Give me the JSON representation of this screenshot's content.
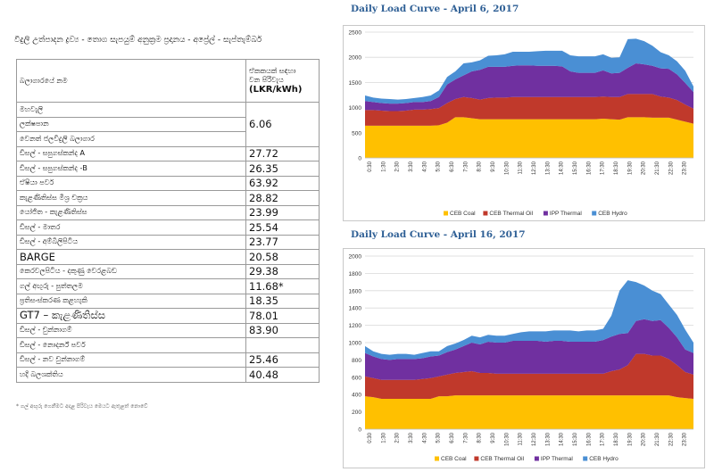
{
  "table": {
    "title": "විදුලි උත්පාදන ද්‍රව්‍ය - තොග සැපයුම් අනුක්‍රම ප්‍රදානය - අප්‍රේල් - සැප්තැම්බර්",
    "header_col1": "බලාගාරයේ නම",
    "header_col2_line1": "ඒකකයක් සඳහා",
    "header_col2_line2": "වන පිරිවැය",
    "header_col2_unit": "(LKR/kWh)",
    "rows": [
      {
        "name": "මහවැලි",
        "value": ""
      },
      {
        "name": "ලක්ෂපාන",
        "value": "6.06"
      },
      {
        "name": "වෙනත් ජලවිදුලි බලාගාර",
        "value": ""
      },
      {
        "name": "ඩීසල් - සපුගස්කන්ද A",
        "value": "27.72"
      },
      {
        "name": "ඩීසල් - සපුගස්කන්ද -B",
        "value": "26.35"
      },
      {
        "name": "ඒෂියා පවර්",
        "value": "63.92"
      },
      {
        "name": "කැළණිතිස්ස මිශ්‍ර චක්‍රය",
        "value": "28.82"
      },
      {
        "name": "යෝජිත - කැළණිතිස්ස",
        "value": "23.99"
      },
      {
        "name": "ඩීසල් - මාතර",
        "value": "25.54"
      },
      {
        "name": "ඩීසල් - අම්බිලිපිටිය",
        "value": "23.77"
      },
      {
        "name": "BARGE",
        "value": "20.58"
      },
      {
        "name": "කෙරවලපිටිය - දකුණු වෙරළබඩ",
        "value": "29.38"
      },
      {
        "name": "ගල් අඟුරු - පුත්තලම",
        "value": "11.68*"
      },
      {
        "name": "ප්‍රතිසංස්කරණ කළහැකි",
        "value": "18.35"
      },
      {
        "name": "GT7 –  කැළණිතිස්ස",
        "value": "78.01"
      },
      {
        "name": "ඩීසල් - චුන්නාගම්",
        "value": "83.90"
      },
      {
        "name": "ඩීසල් - නොදර්න් පවර්",
        "value": ""
      },
      {
        "name": "ඩීසල් - නව චුන්නාගම්",
        "value": "25.46"
      },
      {
        "name": "හදි බලශක්තිය",
        "value": "40.48"
      }
    ],
    "footnote": "* ගල් අඟුරු ගෙනීමට අදාළ පිරිවැය මෙයට ඇතුළත් නොවේ"
  },
  "chart_data": [
    {
      "type": "area",
      "title": "Daily Load Curve -      April 6, 2017",
      "stacked": true,
      "ylim": [
        0,
        2500
      ],
      "yticks": [
        0,
        500,
        1000,
        1500,
        2000,
        2500
      ],
      "x_labels": [
        "0:30",
        "1:30",
        "2:30",
        "3:30",
        "4:30",
        "5:30",
        "6:30",
        "7:30",
        "8:30",
        "9:30",
        "10:30",
        "11:30",
        "12:30",
        "13:30",
        "14:30",
        "15:30",
        "16:30",
        "17:30",
        "18:30",
        "19:30",
        "20:30",
        "21:30",
        "22:30",
        "23:30"
      ],
      "legend": "bottom",
      "series": [
        {
          "name": "CEB Coal",
          "color": "#ffc000",
          "values": [
            640,
            640,
            640,
            640,
            640,
            640,
            640,
            640,
            640,
            650,
            700,
            810,
            810,
            790,
            770,
            770,
            770,
            770,
            770,
            770,
            770,
            770,
            770,
            770,
            770,
            770,
            770,
            770,
            770,
            780,
            770,
            760,
            810,
            810,
            810,
            800,
            800,
            800,
            760,
            720,
            680
          ]
        },
        {
          "name": "CEB Thermal Oil",
          "color": "#c0392b",
          "values": [
            310,
            310,
            300,
            290,
            290,
            300,
            320,
            320,
            330,
            340,
            390,
            360,
            400,
            400,
            390,
            420,
            430,
            430,
            440,
            440,
            440,
            440,
            440,
            440,
            440,
            440,
            440,
            440,
            440,
            440,
            440,
            450,
            460,
            460,
            460,
            470,
            420,
            400,
            390,
            340,
            300
          ]
        },
        {
          "name": "IPP Thermal",
          "color": "#7030a0",
          "values": [
            180,
            160,
            150,
            150,
            150,
            150,
            150,
            150,
            160,
            220,
            370,
            390,
            430,
            530,
            590,
            620,
            610,
            610,
            620,
            630,
            630,
            620,
            620,
            620,
            610,
            510,
            480,
            480,
            480,
            520,
            470,
            480,
            520,
            610,
            590,
            560,
            560,
            570,
            510,
            430,
            330
          ]
        },
        {
          "name": "CEB Hydro",
          "color": "#4a8fd4",
          "values": [
            110,
            90,
            90,
            90,
            80,
            80,
            80,
            100,
            110,
            130,
            150,
            160,
            240,
            180,
            190,
            220,
            230,
            250,
            280,
            270,
            270,
            290,
            300,
            300,
            310,
            320,
            330,
            330,
            330,
            320,
            310,
            310,
            570,
            490,
            460,
            400,
            320,
            270,
            260,
            240,
            110
          ]
        }
      ]
    },
    {
      "type": "area",
      "title": "Daily Load Curve -      April 16, 2017",
      "stacked": true,
      "ylim": [
        0,
        2000
      ],
      "yticks": [
        0,
        200,
        400,
        600,
        800,
        1000,
        1200,
        1400,
        1600,
        1800,
        2000
      ],
      "x_labels": [
        "0:30",
        "1:30",
        "2:30",
        "3:30",
        "4:30",
        "5:30",
        "6:30",
        "7:30",
        "8:30",
        "9:30",
        "10:30",
        "11:30",
        "12:30",
        "13:30",
        "14:30",
        "15:30",
        "16:30",
        "17:30",
        "18:30",
        "19:30",
        "20:30",
        "21:30",
        "22:30",
        "23:30"
      ],
      "legend": "bottom",
      "series": [
        {
          "name": "CEB Coal",
          "color": "#ffc000",
          "values": [
            380,
            370,
            350,
            350,
            350,
            350,
            350,
            350,
            350,
            380,
            380,
            390,
            390,
            390,
            390,
            390,
            390,
            390,
            390,
            390,
            390,
            390,
            390,
            390,
            390,
            390,
            390,
            390,
            390,
            390,
            390,
            390,
            390,
            390,
            390,
            390,
            390,
            390,
            370,
            360,
            350
          ]
        },
        {
          "name": "CEB Thermal Oil",
          "color": "#c0392b",
          "values": [
            230,
            220,
            220,
            220,
            220,
            220,
            220,
            230,
            240,
            230,
            250,
            260,
            270,
            280,
            260,
            260,
            250,
            250,
            250,
            250,
            250,
            250,
            250,
            250,
            250,
            250,
            250,
            250,
            250,
            250,
            280,
            300,
            350,
            480,
            480,
            460,
            460,
            420,
            370,
            300,
            280
          ]
        },
        {
          "name": "IPP Thermal",
          "color": "#7030a0",
          "values": [
            270,
            250,
            240,
            230,
            240,
            240,
            240,
            240,
            250,
            240,
            260,
            270,
            300,
            330,
            330,
            360,
            360,
            360,
            380,
            380,
            380,
            380,
            370,
            380,
            380,
            370,
            370,
            370,
            370,
            390,
            400,
            410,
            370,
            380,
            400,
            400,
            410,
            360,
            320,
            260,
            250
          ]
        },
        {
          "name": "CEB Hydro",
          "color": "#4a8fd4",
          "values": [
            80,
            60,
            60,
            60,
            60,
            60,
            50,
            60,
            60,
            50,
            70,
            70,
            70,
            80,
            80,
            80,
            80,
            80,
            80,
            100,
            110,
            110,
            120,
            120,
            120,
            130,
            120,
            130,
            130,
            130,
            240,
            500,
            610,
            450,
            390,
            350,
            300,
            270,
            260,
            230,
            120
          ]
        }
      ]
    }
  ]
}
